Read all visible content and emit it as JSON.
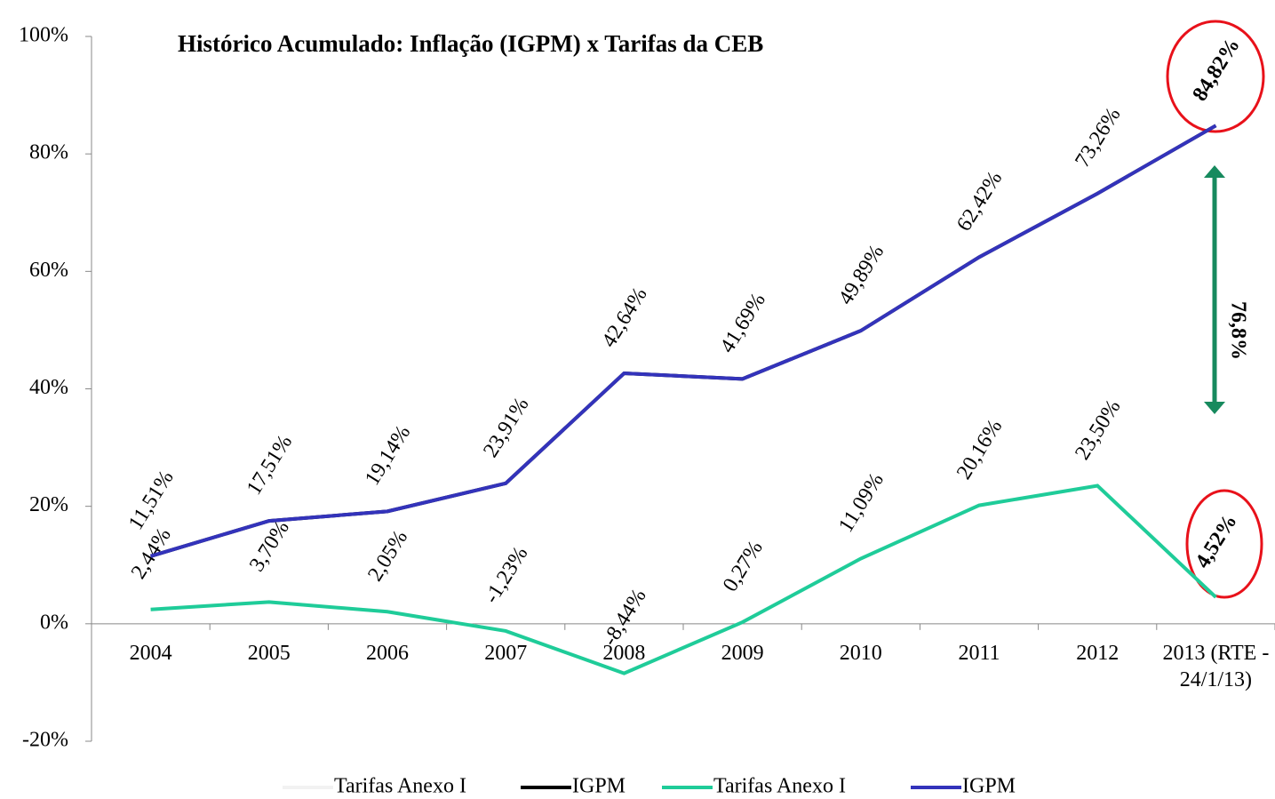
{
  "chart_data": {
    "type": "line",
    "title": "Histórico Acumulado: Inflação (IGPM) x Tarifas da CEB",
    "categories": [
      "2004",
      "2005",
      "2006",
      "2007",
      "2008",
      "2009",
      "2010",
      "2011",
      "2012",
      "2013 (RTE - 24/1/13)"
    ],
    "series": [
      {
        "name": "Tarifas Anexo I",
        "color": "#f2f2f2",
        "values": [
          2.44,
          3.7,
          2.05,
          -1.23,
          -8.44,
          0.27,
          11.09,
          20.16,
          23.5,
          4.52
        ]
      },
      {
        "name": "IGPM",
        "color": "#000000",
        "values": [
          11.51,
          17.51,
          19.14,
          23.91,
          42.64,
          41.69,
          49.89,
          62.42,
          73.26,
          84.82
        ]
      },
      {
        "name": "Tarifas Anexo I",
        "color": "#1fcc99",
        "values": [
          2.44,
          3.7,
          2.05,
          -1.23,
          -8.44,
          0.27,
          11.09,
          20.16,
          23.5,
          4.52
        ],
        "value_labels": [
          "2,44%",
          "3,70%",
          "2,05%",
          "-1,23%",
          "-8,44%",
          "0,27%",
          "11,09%",
          "20,16%",
          "23,50%",
          "4,52%"
        ]
      },
      {
        "name": "IGPM",
        "color": "#3333bb",
        "values": [
          11.51,
          17.51,
          19.14,
          23.91,
          42.64,
          41.69,
          49.89,
          62.42,
          73.26,
          84.82
        ],
        "value_labels": [
          "11,51%",
          "17,51%",
          "19,14%",
          "23,91%",
          "42,64%",
          "41,69%",
          "49,89%",
          "62,42%",
          "73,26%",
          "84,82%"
        ]
      }
    ],
    "ylim": [
      -20,
      100
    ],
    "yticks": [
      {
        "value": -20,
        "label": "-20%"
      },
      {
        "value": 0,
        "label": "0%"
      },
      {
        "value": 20,
        "label": "20%"
      },
      {
        "value": 40,
        "label": "40%"
      },
      {
        "value": 60,
        "label": "60%"
      },
      {
        "value": 80,
        "label": "80%"
      },
      {
        "value": 100,
        "label": "100%"
      }
    ],
    "annotations": [
      "76,8%"
    ],
    "legend": "bottom"
  }
}
